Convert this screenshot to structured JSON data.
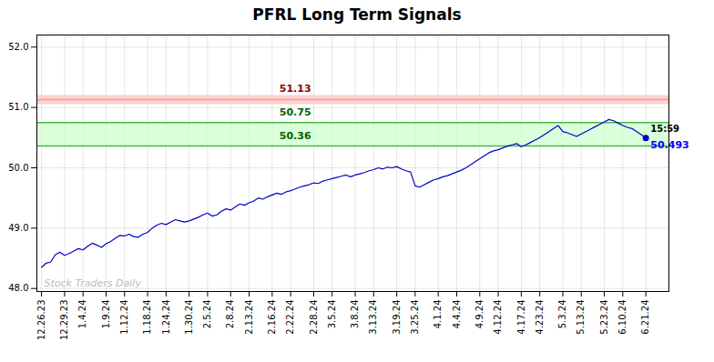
{
  "chart_data": {
    "type": "line",
    "title": "PFRL Long Term Signals",
    "categories": [
      "12.26.23",
      null,
      null,
      null,
      null,
      "12.29.23",
      null,
      null,
      null,
      "1.4.24",
      null,
      null,
      null,
      null,
      "1.9.24",
      null,
      null,
      null,
      "1.12.24",
      null,
      null,
      null,
      null,
      "1.18.24",
      null,
      null,
      null,
      "1.24.24",
      null,
      null,
      null,
      null,
      "1.30.24",
      null,
      null,
      null,
      "2.5.24",
      null,
      null,
      null,
      null,
      "2.8.24",
      null,
      null,
      null,
      "2.13.24",
      null,
      null,
      null,
      null,
      "2.16.24",
      null,
      null,
      null,
      "2.22.24",
      null,
      null,
      null,
      null,
      "2.28.24",
      null,
      null,
      null,
      "3.5.24",
      null,
      null,
      null,
      null,
      "3.8.24",
      null,
      null,
      null,
      "3.13.24",
      null,
      null,
      null,
      null,
      "3.19.24",
      null,
      null,
      null,
      "3.25.24",
      null,
      null,
      null,
      null,
      "4.1.24",
      null,
      null,
      null,
      "4.4.24",
      null,
      null,
      null,
      null,
      "4.9.24",
      null,
      null,
      null,
      "4.12.24",
      null,
      null,
      null,
      null,
      "4.17.24",
      null,
      null,
      null,
      "4.23.24",
      null,
      null,
      null,
      null,
      "5.3.24",
      null,
      null,
      null,
      "5.13.24",
      null,
      null,
      null,
      null,
      "5.23.24",
      null,
      null,
      null,
      "6.10.24",
      null,
      null,
      null,
      null,
      "6.21.24"
    ],
    "values": [
      48.35,
      48.42,
      48.44,
      48.56,
      48.6,
      48.55,
      48.58,
      48.62,
      48.66,
      48.64,
      48.7,
      48.75,
      48.72,
      48.68,
      48.74,
      48.78,
      48.83,
      48.88,
      48.87,
      48.9,
      48.86,
      48.85,
      48.9,
      48.93,
      49.0,
      49.05,
      49.08,
      49.06,
      49.1,
      49.14,
      49.12,
      49.1,
      49.12,
      49.15,
      49.18,
      49.22,
      49.25,
      49.2,
      49.22,
      49.28,
      49.32,
      49.3,
      49.35,
      49.4,
      49.38,
      49.42,
      49.45,
      49.5,
      49.48,
      49.52,
      49.55,
      49.58,
      49.56,
      49.6,
      49.62,
      49.65,
      49.68,
      49.7,
      49.72,
      49.75,
      49.74,
      49.78,
      49.8,
      49.82,
      49.84,
      49.86,
      49.88,
      49.85,
      49.88,
      49.9,
      49.92,
      49.95,
      49.97,
      50.0,
      49.98,
      50.01,
      50.0,
      50.02,
      49.98,
      49.95,
      49.93,
      49.7,
      49.68,
      49.72,
      49.76,
      49.8,
      49.82,
      49.85,
      49.87,
      49.9,
      49.93,
      49.96,
      50.0,
      50.05,
      50.1,
      50.15,
      50.2,
      50.25,
      50.28,
      50.3,
      50.33,
      50.36,
      50.38,
      50.4,
      50.35,
      50.38,
      50.42,
      50.46,
      50.5,
      50.55,
      50.6,
      50.65,
      50.7,
      50.6,
      50.58,
      50.55,
      50.52,
      50.56,
      50.6,
      50.64,
      50.68,
      50.72,
      50.76,
      50.8,
      50.78,
      50.74,
      50.7,
      50.67,
      50.65,
      50.6,
      50.55,
      50.493
    ],
    "color": "#0000cc",
    "last_point": {
      "value": 50.493,
      "time_label": "15:59",
      "label_color": "#0000ff"
    },
    "levels": [
      {
        "value": 51.13,
        "color": "#ff9999",
        "label_color": "darkred",
        "band_color": "#ffcccc"
      },
      {
        "value": 50.75,
        "color": "#44bb44",
        "label_color": "darkgreen"
      },
      {
        "value": 50.36,
        "color": "#44bb44",
        "label_color": "darkgreen"
      }
    ],
    "zone": {
      "lower": 50.36,
      "upper": 50.75,
      "color": "#ccffcc"
    },
    "watermark": "Stock Traders Daily",
    "watermark_color": "#bbbbbb",
    "ylim": [
      47.95,
      52.2
    ],
    "yticks": [
      48,
      49,
      50,
      51,
      52
    ],
    "grid": true
  }
}
